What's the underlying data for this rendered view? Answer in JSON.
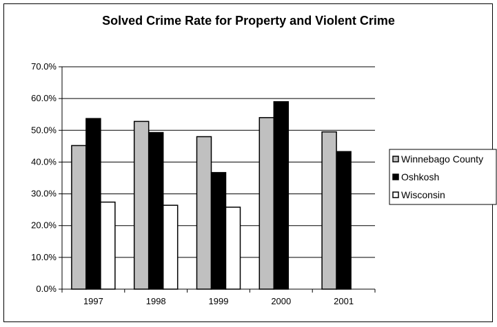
{
  "chart_data": {
    "type": "bar",
    "title": "Solved Crime Rate for Property and Violent Crime",
    "xlabel": "",
    "ylabel": "",
    "categories": [
      "1997",
      "1998",
      "1999",
      "2000",
      "2001"
    ],
    "series": [
      {
        "name": "Winnebago County",
        "color": "#c0c0c0",
        "values": [
          0.452,
          0.528,
          0.48,
          0.54,
          0.495
        ]
      },
      {
        "name": "Oshkosh",
        "color": "#000000",
        "values": [
          0.537,
          0.493,
          0.367,
          0.59,
          0.433
        ]
      },
      {
        "name": "Wisconsin",
        "color": "#ffffff",
        "values": [
          0.274,
          0.264,
          0.258,
          null,
          null
        ]
      }
    ],
    "ylim": [
      0,
      0.7
    ],
    "yticks": [
      "0.0%",
      "10.0%",
      "20.0%",
      "30.0%",
      "40.0%",
      "50.0%",
      "60.0%",
      "70.0%"
    ],
    "grid": true,
    "legend_position": "right"
  }
}
